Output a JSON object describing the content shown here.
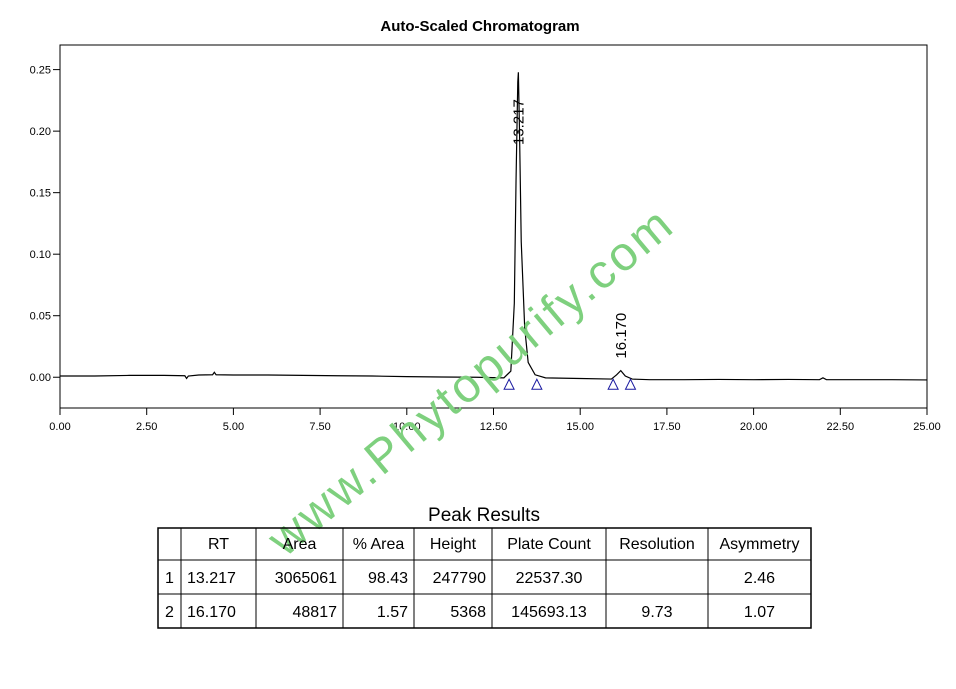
{
  "chart_data": {
    "type": "line",
    "title": "Auto-Scaled Chromatogram",
    "x": [
      0,
      1,
      2,
      3,
      3.6,
      3.65,
      3.7,
      4,
      4.4,
      4.45,
      4.5,
      5,
      6,
      7,
      8,
      9,
      10,
      11,
      12,
      12.8,
      13.0,
      13.1,
      13.15,
      13.2,
      13.217,
      13.25,
      13.3,
      13.4,
      13.5,
      13.7,
      14,
      15,
      15.9,
      16.05,
      16.17,
      16.3,
      16.5,
      17,
      18,
      19,
      20,
      21,
      21.9,
      22,
      22.1,
      23,
      24,
      25
    ],
    "series": [
      {
        "color": "#000000",
        "values": [
          0.001,
          0.001,
          0.0015,
          0.0015,
          0.0012,
          -0.001,
          0.001,
          0.0018,
          0.002,
          0.004,
          0.002,
          0.0018,
          0.0018,
          0.0015,
          0.0012,
          0.001,
          0.0005,
          0.0002,
          0,
          -0.0005,
          0.005,
          0.06,
          0.16,
          0.24,
          0.2478,
          0.2,
          0.11,
          0.04,
          0.012,
          0.002,
          -0.0005,
          -0.001,
          -0.0015,
          0.002,
          0.0054,
          0.001,
          -0.0015,
          -0.002,
          -0.002,
          -0.0018,
          -0.002,
          -0.0018,
          -0.002,
          -0.0005,
          -0.002,
          -0.002,
          -0.002,
          -0.0022
        ]
      }
    ],
    "xlim": [
      0,
      25
    ],
    "ylim": [
      -0.025,
      0.27
    ],
    "xticks": [
      {
        "value": 0,
        "label": "0.00"
      },
      {
        "value": 2.5,
        "label": "2.50"
      },
      {
        "value": 5,
        "label": "5.00"
      },
      {
        "value": 7.5,
        "label": "7.50"
      },
      {
        "value": 10,
        "label": "10.00"
      },
      {
        "value": 12.5,
        "label": "12.50"
      },
      {
        "value": 15,
        "label": "15.00"
      },
      {
        "value": 17.5,
        "label": "17.50"
      },
      {
        "value": 20,
        "label": "20.00"
      },
      {
        "value": 22.5,
        "label": "22.50"
      },
      {
        "value": 25,
        "label": "25.00"
      }
    ],
    "yticks": [
      {
        "value": 0,
        "label": "0.00"
      },
      {
        "value": 0.05,
        "label": "0.05"
      },
      {
        "value": 0.1,
        "label": "0.10"
      },
      {
        "value": 0.15,
        "label": "0.15"
      },
      {
        "value": 0.2,
        "label": "0.20"
      },
      {
        "value": 0.25,
        "label": "0.25"
      }
    ],
    "annotations": [
      {
        "x": 13.217,
        "y": 0.2478,
        "label": "13.217"
      },
      {
        "x": 16.17,
        "y": 0.0054,
        "label": "16.170"
      }
    ],
    "peak_bounds": [
      12.95,
      13.75,
      15.95,
      16.45
    ],
    "peak_marker_color": "#1a1aa0"
  },
  "watermark": "www.Phytopurify.com",
  "table": {
    "title": "Peak Results",
    "columns": [
      null,
      "RT",
      "Area",
      "% Area",
      "Height",
      "Plate Count",
      "Resolution",
      "Asymmetry"
    ],
    "rows": [
      [
        "1",
        "13.217",
        "3065061",
        "98.43",
        "247790",
        "22537.30",
        null,
        "2.46"
      ],
      [
        "2",
        "16.170",
        "48817",
        "1.57",
        "5368",
        "145693.13",
        "9.73",
        "1.07"
      ]
    ]
  }
}
